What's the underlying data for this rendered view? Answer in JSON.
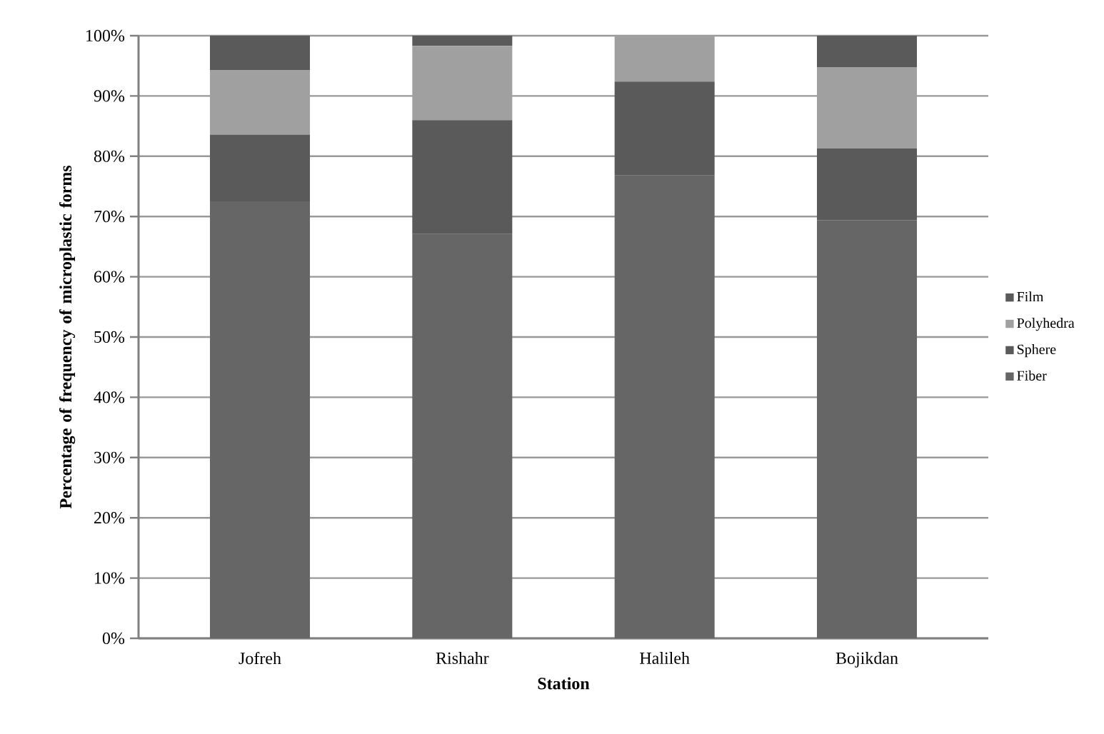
{
  "chart_data": {
    "type": "bar",
    "stacked": true,
    "xlabel": "Station",
    "ylabel": "Percentage of frequency of microplastic forms",
    "categories": [
      "Jofreh",
      "Rishahr",
      "Halileh",
      "Bojikdan"
    ],
    "series": [
      {
        "name": "Fiber",
        "color": "#666666",
        "values": [
          72.5,
          67.1,
          76.8,
          69.4
        ]
      },
      {
        "name": "Sphere",
        "color": "#5a5a5a",
        "values": [
          11.1,
          18.9,
          15.6,
          11.9
        ]
      },
      {
        "name": "Polyhedra",
        "color": "#a0a0a0",
        "values": [
          10.7,
          12.3,
          7.6,
          13.5
        ]
      },
      {
        "name": "Film",
        "color": "#5a5a5a",
        "values": [
          5.7,
          1.7,
          0,
          5.2
        ]
      }
    ],
    "ylim": [
      0,
      100
    ],
    "yticks": [
      {
        "value": 0,
        "label": "0%"
      },
      {
        "value": 10,
        "label": "10%"
      },
      {
        "value": 20,
        "label": "20%"
      },
      {
        "value": 30,
        "label": "30%"
      },
      {
        "value": 40,
        "label": "40%"
      },
      {
        "value": 50,
        "label": "50%"
      },
      {
        "value": 60,
        "label": "60%"
      },
      {
        "value": 70,
        "label": "70%"
      },
      {
        "value": 80,
        "label": "80%"
      },
      {
        "value": 90,
        "label": "90%"
      },
      {
        "value": 100,
        "label": "100%"
      }
    ],
    "grid": "y",
    "legend": "right"
  }
}
